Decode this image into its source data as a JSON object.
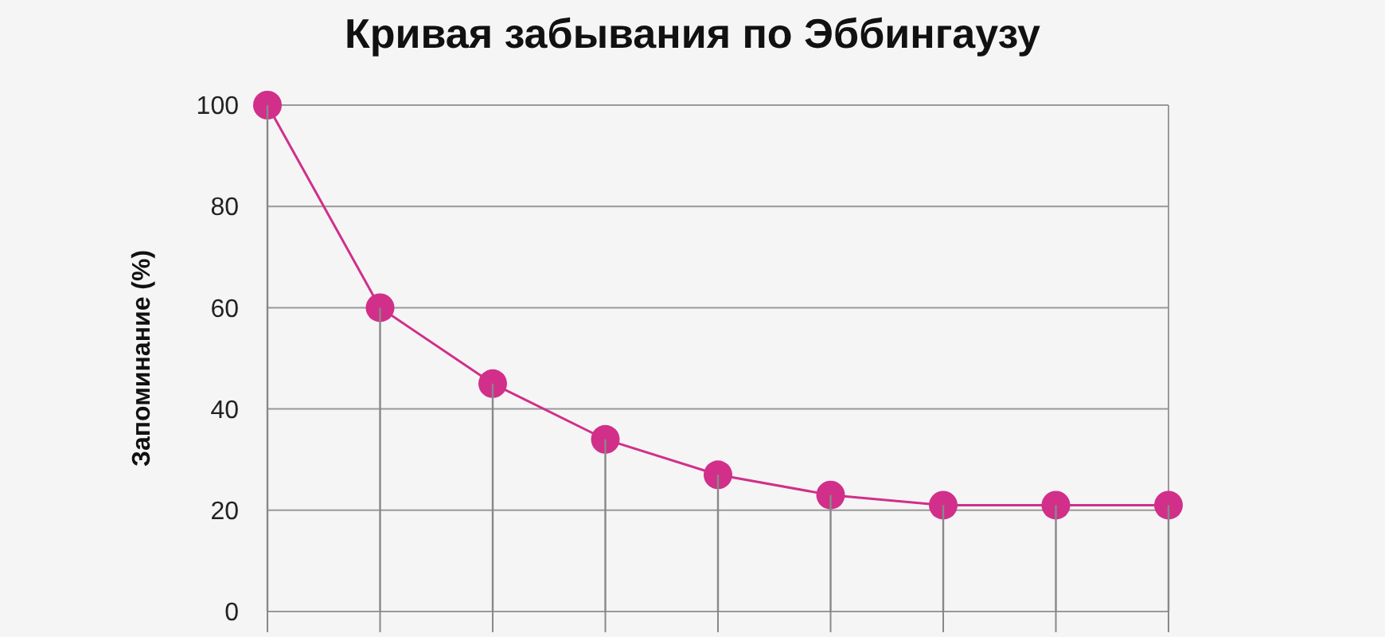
{
  "chart_data": {
    "type": "line",
    "title": "Кривая забывания по Эббингаузу",
    "ylabel": "Запоминание (%)",
    "categories": [
      null,
      null,
      null,
      null,
      null,
      null,
      null,
      null,
      null
    ],
    "series": [
      {
        "type": "bar",
        "color": "#888888",
        "values": [
          100,
          60,
          45,
          34,
          27,
          23,
          21,
          21,
          21
        ]
      },
      {
        "color": "#d12f8a",
        "values": [
          100,
          60,
          45,
          34,
          27,
          23,
          21,
          21,
          21
        ]
      }
    ],
    "ylim": [
      0,
      100
    ],
    "yticks": [
      0,
      20,
      40,
      60,
      80,
      100
    ],
    "grid": "y",
    "marker": "circle",
    "legend": false
  }
}
